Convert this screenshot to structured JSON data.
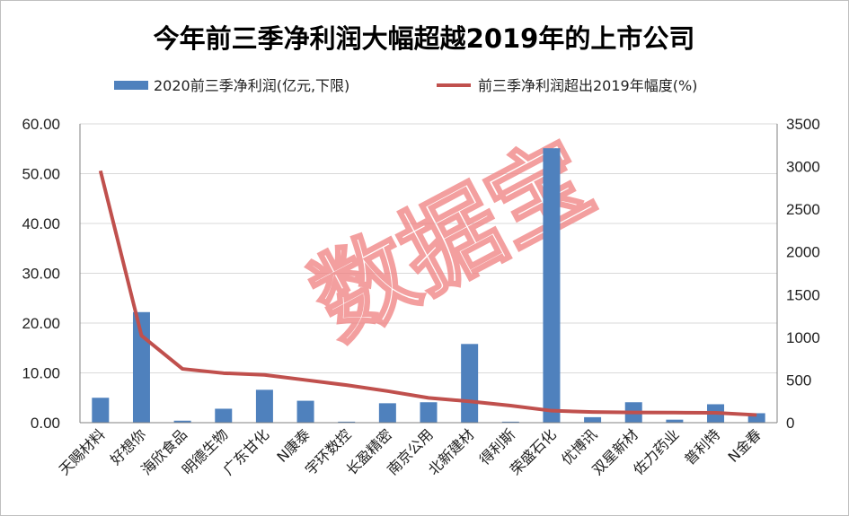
{
  "chart_data": {
    "type": "bar",
    "title": "今年前三季净利润大幅超越2019年的上市公司",
    "watermark": "数据宝",
    "categories": [
      "天赐材料",
      "好想你",
      "海欣食品",
      "明德生物",
      "广东甘化",
      "N康泰",
      "宇环数控",
      "长盈精密",
      "南京公用",
      "北新建材",
      "得利斯",
      "荣盛石化",
      "优博讯",
      "双星新材",
      "佐力药业",
      "普利特",
      "N金春"
    ],
    "series": [
      {
        "name": "2020前三季净利润(亿元,下限)",
        "type": "bar",
        "axis": "left",
        "color": "#4f81bd",
        "values": [
          5.0,
          22.2,
          0.4,
          2.8,
          6.6,
          4.4,
          0.2,
          3.9,
          4.1,
          15.8,
          0.2,
          55.1,
          1.1,
          4.1,
          0.6,
          3.7,
          1.9
        ]
      },
      {
        "name": "前三季净利润超出2019年幅度(%)",
        "type": "line",
        "axis": "right",
        "color": "#c0504d",
        "values": [
          2950,
          1020,
          630,
          580,
          560,
          500,
          440,
          370,
          290,
          250,
          200,
          140,
          125,
          120,
          118,
          115,
          90
        ]
      }
    ],
    "y_left": {
      "min": 0,
      "max": 60,
      "step": 10,
      "tick_labels": [
        "0.00",
        "10.00",
        "20.00",
        "30.00",
        "40.00",
        "50.00",
        "60.00"
      ]
    },
    "y_right": {
      "min": 0,
      "max": 3500,
      "step": 500,
      "tick_labels": [
        "0",
        "500",
        "1000",
        "1500",
        "2000",
        "2500",
        "3000",
        "3500"
      ]
    },
    "grid": true,
    "legend_position": "top"
  }
}
